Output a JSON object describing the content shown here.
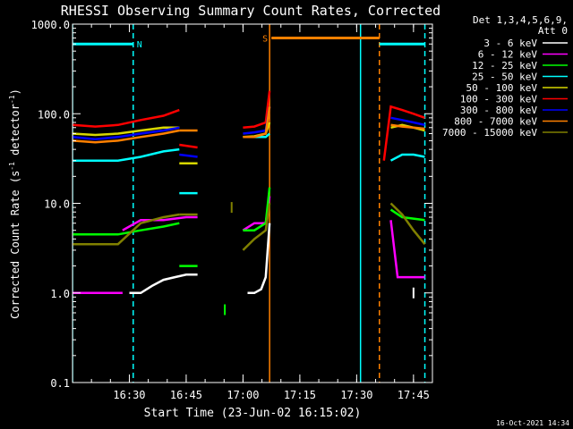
{
  "chart_data": {
    "type": "line",
    "title": "RHESSI Observing Summary Count Rates, Corrected",
    "xlabel": "Start Time (23-Jun-02 16:15:02)",
    "ylabel_main": "Corrected Count Rate (s",
    "ylabel_sup1": "-1",
    "ylabel_mid": " detector",
    "ylabel_sup2": "-1",
    "ylabel_end": ")",
    "yscale": "log",
    "ylim": [
      0.1,
      1000
    ],
    "xlim": [
      16.25,
      17.8333
    ],
    "x_ticks": [
      {
        "x": 16.5,
        "label": "16:30"
      },
      {
        "x": 16.75,
        "label": "16:45"
      },
      {
        "x": 17.0,
        "label": "17:00"
      },
      {
        "x": 17.25,
        "label": "17:15"
      },
      {
        "x": 17.5,
        "label": "17:30"
      },
      {
        "x": 17.75,
        "label": "17:45"
      }
    ],
    "y_ticks": [
      {
        "y": 0.1,
        "label": "0.1"
      },
      {
        "y": 1,
        "label": "1.0"
      },
      {
        "y": 10,
        "label": "10.0"
      },
      {
        "y": 100,
        "label": "100.0"
      },
      {
        "y": 1000,
        "label": "1000.0"
      }
    ],
    "legend_header": [
      "Det 1,3,4,5,6,9,",
      "Att 0"
    ],
    "legend": [
      {
        "name": "3 - 6 keV",
        "color": "#ffffff"
      },
      {
        "name": "6 - 12 keV",
        "color": "#ff00ff"
      },
      {
        "name": "12 - 25 keV",
        "color": "#00ff00"
      },
      {
        "name": "25 - 50 keV",
        "color": "#00ffff"
      },
      {
        "name": "50 - 100 keV",
        "color": "#d7d700"
      },
      {
        "name": "100 - 300 keV",
        "color": "#ff0000"
      },
      {
        "name": "300 - 800 keV",
        "color": "#0000ff"
      },
      {
        "name": "800 - 7000 keV",
        "color": "#ff8000"
      },
      {
        "name": "7000 - 15000 keV",
        "color": "#808000"
      }
    ],
    "flags": [
      {
        "label": "N",
        "color": "#00ffff",
        "x0": 16.25,
        "x1": 16.517,
        "y": 600
      },
      {
        "label": "S",
        "color": "#ff8000",
        "x0": 17.125,
        "x1": 17.6,
        "y": 700
      }
    ],
    "flag_extra_segments": [
      {
        "color": "#00ffff",
        "x0": 17.6,
        "x1": 17.8,
        "y": 600
      }
    ],
    "vlines": [
      {
        "x": 16.25,
        "color": "#00ffff",
        "style": "solid"
      },
      {
        "x": 16.517,
        "color": "#00ffff",
        "style": "dashed"
      },
      {
        "x": 17.117,
        "color": "#ff8000",
        "style": "solid"
      },
      {
        "x": 17.517,
        "color": "#00ffff",
        "style": "solid"
      },
      {
        "x": 17.6,
        "color": "#ff8000",
        "style": "dashed"
      },
      {
        "x": 17.8,
        "color": "#00ffff",
        "style": "dashed"
      }
    ],
    "series": [
      {
        "name": "3 - 6 keV",
        "color": "#ffffff",
        "segments": [
          [
            [
              16.5,
              1.0
            ],
            [
              16.55,
              1.0
            ],
            [
              16.6,
              1.2
            ],
            [
              16.65,
              1.4
            ],
            [
              16.7,
              1.5
            ],
            [
              16.75,
              1.6
            ],
            [
              16.8,
              1.6
            ]
          ],
          [
            [
              17.02,
              1.0
            ],
            [
              17.05,
              1.0
            ],
            [
              17.08,
              1.1
            ],
            [
              17.1,
              1.5
            ],
            [
              17.117,
              6.0
            ]
          ],
          [
            [
              17.75,
              1.0
            ]
          ]
        ]
      },
      {
        "name": "6 - 12 keV",
        "color": "#ff00ff",
        "segments": [
          [
            [
              16.25,
              1.0
            ],
            [
              16.45,
              1.0
            ],
            [
              16.47,
              1.0
            ]
          ],
          [
            [
              16.47,
              5.0
            ],
            [
              16.55,
              6.5
            ],
            [
              16.65,
              6.5
            ],
            [
              16.75,
              7.0
            ],
            [
              16.8,
              7.0
            ]
          ],
          [
            [
              17.0,
              5.0
            ],
            [
              17.05,
              6.0
            ],
            [
              17.1,
              6.0
            ],
            [
              17.117,
              12.0
            ]
          ],
          [
            [
              17.65,
              6.5
            ],
            [
              17.68,
              1.5
            ],
            [
              17.73,
              1.5
            ],
            [
              17.8,
              1.5
            ]
          ]
        ]
      },
      {
        "name": "12 - 25 keV",
        "color": "#00ff00",
        "segments": [
          [
            [
              16.25,
              4.5
            ],
            [
              16.35,
              4.5
            ],
            [
              16.45,
              4.5
            ],
            [
              16.55,
              5.0
            ],
            [
              16.65,
              5.5
            ],
            [
              16.72,
              6.0
            ]
          ],
          [
            [
              16.72,
              2.0
            ],
            [
              16.8,
              2.0
            ]
          ],
          [
            [
              16.92,
              0.65
            ]
          ],
          [
            [
              17.0,
              5.0
            ],
            [
              17.05,
              5.0
            ],
            [
              17.1,
              6.0
            ],
            [
              17.117,
              15.0
            ]
          ],
          [
            [
              17.65,
              8.5
            ],
            [
              17.7,
              7.0
            ],
            [
              17.8,
              6.5
            ]
          ]
        ]
      },
      {
        "name": "25 - 50 keV",
        "color": "#00ffff",
        "segments": [
          [
            [
              16.25,
              30
            ],
            [
              16.35,
              30
            ],
            [
              16.45,
              30
            ],
            [
              16.55,
              33
            ],
            [
              16.65,
              38
            ],
            [
              16.72,
              40
            ]
          ],
          [
            [
              16.72,
              13
            ],
            [
              16.8,
              13
            ]
          ],
          [
            [
              17.0,
              55
            ],
            [
              17.05,
              55
            ],
            [
              17.1,
              55
            ],
            [
              17.117,
              60
            ]
          ],
          [
            [
              17.65,
              30
            ],
            [
              17.7,
              35
            ],
            [
              17.75,
              35
            ],
            [
              17.8,
              33
            ]
          ]
        ]
      },
      {
        "name": "50 - 100 keV",
        "color": "#d7d700",
        "segments": [
          [
            [
              16.25,
              60
            ],
            [
              16.35,
              58
            ],
            [
              16.45,
              60
            ],
            [
              16.55,
              65
            ],
            [
              16.65,
              70
            ],
            [
              16.72,
              70
            ]
          ],
          [
            [
              16.72,
              28
            ],
            [
              16.8,
              28
            ]
          ],
          [
            [
              17.0,
              55
            ],
            [
              17.05,
              56
            ],
            [
              17.1,
              60
            ],
            [
              17.117,
              80
            ]
          ],
          [
            [
              17.65,
              70
            ],
            [
              17.7,
              75
            ],
            [
              17.75,
              70
            ],
            [
              17.8,
              65
            ]
          ]
        ]
      },
      {
        "name": "100 - 300 keV",
        "color": "#ff0000",
        "segments": [
          [
            [
              16.25,
              75
            ],
            [
              16.35,
              72
            ],
            [
              16.45,
              75
            ],
            [
              16.55,
              85
            ],
            [
              16.65,
              95
            ],
            [
              16.72,
              110
            ]
          ],
          [
            [
              16.72,
              45
            ],
            [
              16.8,
              42
            ]
          ],
          [
            [
              17.0,
              70
            ],
            [
              17.05,
              72
            ],
            [
              17.1,
              80
            ],
            [
              17.117,
              180
            ]
          ],
          [
            [
              17.62,
              30
            ],
            [
              17.65,
              120
            ],
            [
              17.7,
              110
            ],
            [
              17.75,
              100
            ],
            [
              17.8,
              90
            ]
          ]
        ]
      },
      {
        "name": "300 - 800 keV",
        "color": "#0000ff",
        "segments": [
          [
            [
              16.25,
              55
            ],
            [
              16.35,
              52
            ],
            [
              16.45,
              55
            ],
            [
              16.55,
              60
            ],
            [
              16.65,
              65
            ],
            [
              16.72,
              70
            ]
          ],
          [
            [
              16.72,
              35
            ],
            [
              16.8,
              33
            ]
          ],
          [
            [
              17.0,
              60
            ],
            [
              17.05,
              62
            ],
            [
              17.1,
              65
            ],
            [
              17.117,
              120
            ]
          ],
          [
            [
              17.65,
              90
            ],
            [
              17.7,
              85
            ],
            [
              17.75,
              80
            ],
            [
              17.8,
              75
            ]
          ]
        ]
      },
      {
        "name": "800 - 7000 keV",
        "color": "#ff8000",
        "segments": [
          [
            [
              16.25,
              50
            ],
            [
              16.35,
              48
            ],
            [
              16.45,
              50
            ],
            [
              16.55,
              55
            ],
            [
              16.65,
              60
            ],
            [
              16.72,
              65
            ]
          ],
          [
            [
              16.72,
              65
            ],
            [
              16.8,
              65
            ]
          ],
          [
            [
              17.0,
              55
            ],
            [
              17.05,
              55
            ],
            [
              17.1,
              60
            ],
            [
              17.117,
              120
            ]
          ],
          [
            [
              17.65,
              75
            ],
            [
              17.7,
              72
            ],
            [
              17.75,
              70
            ],
            [
              17.8,
              68
            ]
          ]
        ]
      },
      {
        "name": "7000 - 15000 keV",
        "color": "#808000",
        "segments": [
          [
            [
              16.25,
              3.5
            ],
            [
              16.35,
              3.5
            ],
            [
              16.45,
              3.5
            ],
            [
              16.55,
              6.0
            ],
            [
              16.65,
              7.0
            ],
            [
              16.72,
              7.5
            ]
          ],
          [
            [
              16.72,
              7.5
            ],
            [
              16.8,
              7.5
            ]
          ],
          [
            [
              16.95,
              9.0
            ]
          ],
          [
            [
              17.0,
              3.0
            ],
            [
              17.05,
              4.0
            ],
            [
              17.1,
              5.0
            ],
            [
              17.117,
              10.0
            ]
          ],
          [
            [
              17.65,
              10
            ],
            [
              17.7,
              7.5
            ],
            [
              17.75,
              5.0
            ],
            [
              17.8,
              3.5
            ]
          ]
        ]
      }
    ]
  },
  "timestamp": "16-Oct-2021 14:34"
}
